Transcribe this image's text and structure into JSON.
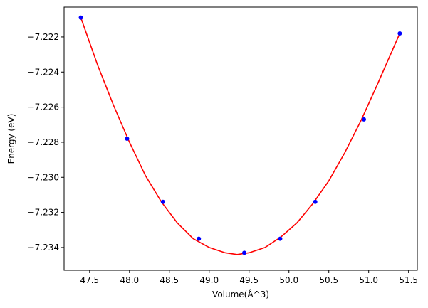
{
  "chart_data": {
    "type": "scatter",
    "title": "",
    "xlabel": "Volume(Å^3)",
    "ylabel": "Energy (eV)",
    "xlim": [
      47.18,
      51.61
    ],
    "ylim": [
      -7.2353,
      -7.2203
    ],
    "x_ticks": [
      47.5,
      48.0,
      48.5,
      49.0,
      49.5,
      50.0,
      50.5,
      51.0,
      51.5
    ],
    "x_tick_labels": [
      "47.5",
      "48.0",
      "48.5",
      "49.0",
      "49.5",
      "50.0",
      "50.5",
      "51.0",
      "51.5"
    ],
    "y_ticks": [
      -7.222,
      -7.224,
      -7.226,
      -7.228,
      -7.23,
      -7.232,
      -7.234
    ],
    "y_tick_labels": [
      "−7.222",
      "−7.224",
      "−7.226",
      "−7.228",
      "−7.230",
      "−7.232",
      "−7.234"
    ],
    "grid": false,
    "series": [
      {
        "kind": "points",
        "color": "#0000ff",
        "x": [
          47.39,
          47.97,
          48.42,
          48.87,
          49.44,
          49.89,
          50.33,
          50.94,
          51.39
        ],
        "y": [
          -7.2209,
          -7.2278,
          -7.2314,
          -7.2335,
          -7.2343,
          -7.2335,
          -7.2314,
          -7.2267,
          -7.2218
        ]
      },
      {
        "kind": "fit-curve",
        "color": "#ff0000",
        "x": [
          47.39,
          47.6,
          47.8,
          48.0,
          48.2,
          48.4,
          48.6,
          48.8,
          49.0,
          49.2,
          49.35,
          49.5,
          49.7,
          49.9,
          50.1,
          50.3,
          50.5,
          50.7,
          50.9,
          51.1,
          51.39
        ],
        "y": [
          -7.2209,
          -7.2236,
          -7.2259,
          -7.228,
          -7.2299,
          -7.2314,
          -7.2326,
          -7.2335,
          -7.234,
          -7.2343,
          -7.2344,
          -7.2343,
          -7.234,
          -7.2334,
          -7.2326,
          -7.2315,
          -7.2302,
          -7.2286,
          -7.2268,
          -7.2248,
          -7.2218
        ]
      }
    ]
  }
}
